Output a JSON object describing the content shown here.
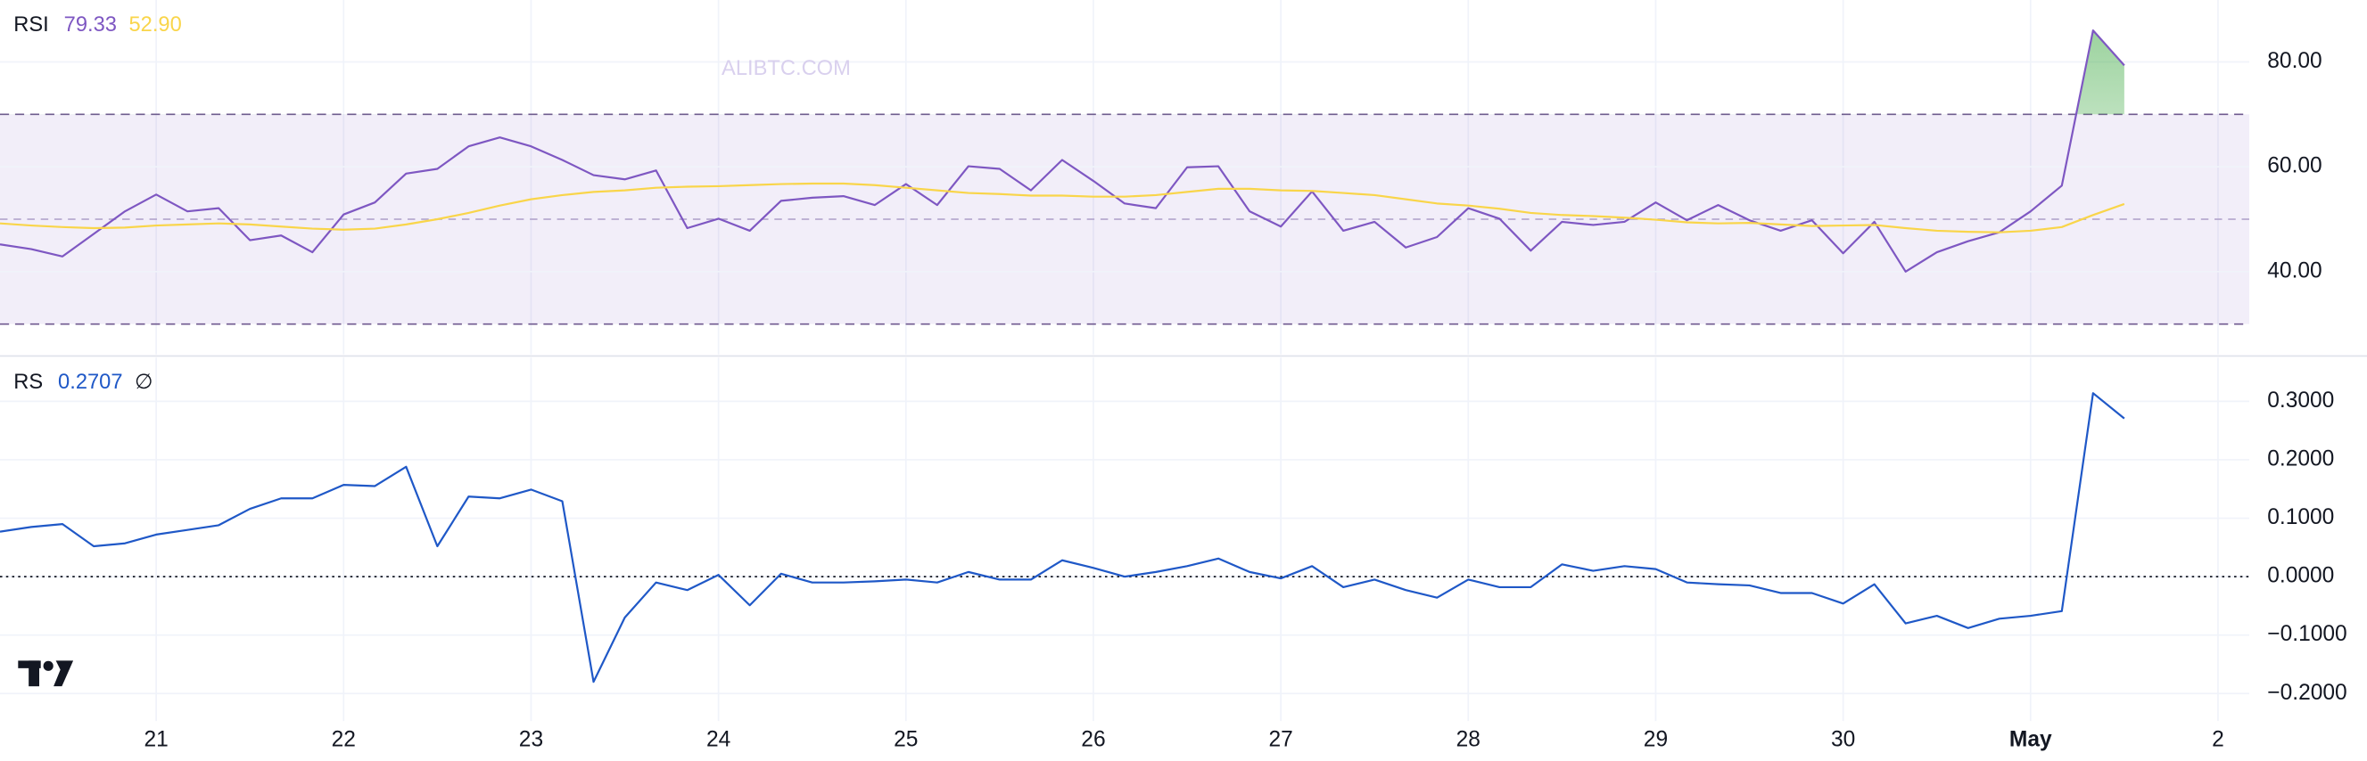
{
  "chart_data": [
    {
      "type": "line",
      "title": "RSI",
      "watermark": "ALIBTC.COM",
      "series": [
        {
          "color": "#7e57c2",
          "current_label": "79.33",
          "values": [
            45.2,
            44.3,
            42.9,
            47.2,
            51.5,
            54.7,
            51.5,
            52.1,
            46.0,
            46.9,
            43.7,
            50.9,
            53.2,
            58.7,
            59.6,
            63.9,
            65.6,
            63.9,
            61.3,
            58.4,
            57.6,
            59.3,
            48.3,
            50.1,
            47.8,
            53.5,
            54.1,
            54.4,
            52.7,
            56.7,
            52.7,
            60.1,
            59.6,
            55.5,
            61.3,
            57.3,
            53.0,
            52.1,
            59.9,
            60.1,
            51.5,
            48.6,
            55.3,
            47.8,
            49.5,
            44.6,
            46.6,
            52.1,
            50.1,
            44.0,
            49.5,
            48.9,
            49.5,
            53.2,
            49.8,
            52.7,
            49.8,
            47.8,
            49.8,
            43.5,
            49.5,
            40.0,
            43.7,
            45.8,
            47.5,
            51.5,
            56.4,
            86.0,
            79.33
          ]
        },
        {
          "color": "#f9d54a",
          "current_label": "52.90",
          "values": [
            49.2,
            48.8,
            48.5,
            48.3,
            48.4,
            48.8,
            49.0,
            49.2,
            49.0,
            48.6,
            48.2,
            48.0,
            48.2,
            49.0,
            50.0,
            51.2,
            52.6,
            53.8,
            54.6,
            55.2,
            55.5,
            56.0,
            56.2,
            56.3,
            56.5,
            56.7,
            56.8,
            56.8,
            56.5,
            56.0,
            55.5,
            55.0,
            54.8,
            54.5,
            54.5,
            54.3,
            54.3,
            54.6,
            55.2,
            55.8,
            55.8,
            55.5,
            55.4,
            55.0,
            54.6,
            53.8,
            53.0,
            52.6,
            52.0,
            51.2,
            50.8,
            50.6,
            50.3,
            49.9,
            49.4,
            49.2,
            49.3,
            49.0,
            48.7,
            48.8,
            48.9,
            48.3,
            47.8,
            47.6,
            47.5,
            47.8,
            48.5,
            50.8,
            52.9
          ]
        }
      ],
      "band_levels": [
        30,
        50,
        70
      ],
      "overbought_color": "#4caf50",
      "band_color": "#7e57c2",
      "ylim": [
        24.2,
        91.8
      ],
      "yticks": [
        {
          "value": 40,
          "label": "40.00"
        },
        {
          "value": 60,
          "label": "60.00"
        },
        {
          "value": 80,
          "label": "80.00"
        }
      ],
      "xlim": [
        0,
        72
      ],
      "grid": true
    },
    {
      "type": "line",
      "title": "RS",
      "icon": "∅",
      "series": [
        {
          "color": "#1f58c7",
          "current_label": "0.2707",
          "values": [
            0.077,
            0.085,
            0.09,
            0.052,
            0.057,
            0.072,
            0.08,
            0.088,
            0.116,
            0.134,
            0.134,
            0.157,
            0.155,
            0.188,
            0.052,
            0.137,
            0.134,
            0.149,
            0.129,
            -0.18,
            -0.07,
            -0.01,
            -0.023,
            0.003,
            -0.049,
            0.005,
            -0.01,
            -0.01,
            -0.008,
            -0.005,
            -0.01,
            0.008,
            -0.005,
            -0.005,
            0.028,
            0.015,
            0.0,
            0.008,
            0.018,
            0.031,
            0.008,
            -0.003,
            0.018,
            -0.018,
            -0.005,
            -0.023,
            -0.036,
            -0.005,
            -0.018,
            -0.018,
            0.021,
            0.01,
            0.018,
            0.013,
            -0.01,
            -0.013,
            -0.015,
            -0.028,
            -0.028,
            -0.046,
            -0.013,
            -0.08,
            -0.067,
            -0.088,
            -0.072,
            -0.067,
            -0.059,
            0.314,
            0.2707
          ]
        }
      ],
      "reference_line": 0,
      "ylim": [
        -0.247,
        0.375
      ],
      "yticks": [
        {
          "value": -0.2,
          "label": "−0.2000"
        },
        {
          "value": -0.1,
          "label": "−0.1000"
        },
        {
          "value": 0,
          "label": "0.0000"
        },
        {
          "value": 0.1,
          "label": "0.1000"
        },
        {
          "value": 0.2,
          "label": "0.2000"
        },
        {
          "value": 0.3,
          "label": "0.3000"
        }
      ],
      "xlim": [
        0,
        72
      ],
      "xticks": [
        {
          "value": 5,
          "label": "21"
        },
        {
          "value": 11,
          "label": "22"
        },
        {
          "value": 17,
          "label": "23"
        },
        {
          "value": 23,
          "label": "24"
        },
        {
          "value": 29,
          "label": "25"
        },
        {
          "value": 35,
          "label": "26"
        },
        {
          "value": 41,
          "label": "27"
        },
        {
          "value": 47,
          "label": "28"
        },
        {
          "value": 53,
          "label": "29"
        },
        {
          "value": 59,
          "label": "30"
        },
        {
          "value": 65,
          "label": "May"
        },
        {
          "value": 71,
          "label": "2"
        }
      ],
      "grid": true
    }
  ]
}
